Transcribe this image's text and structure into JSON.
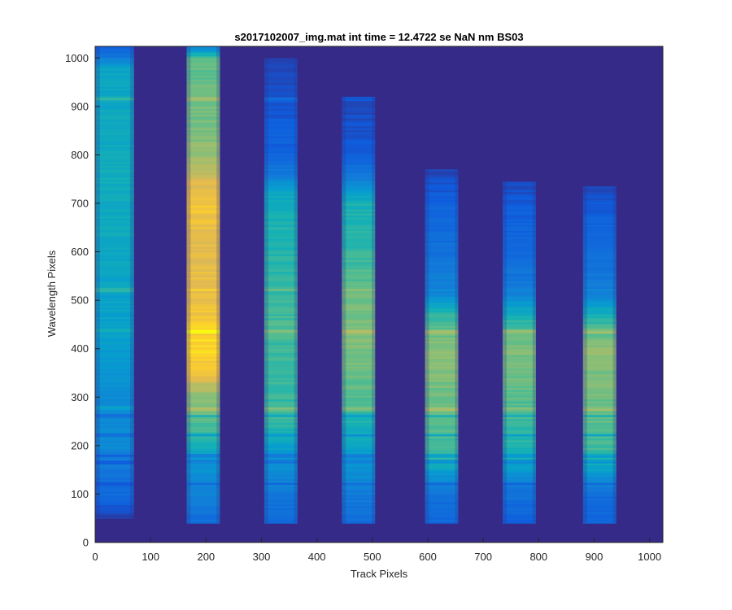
{
  "chart_data": {
    "type": "heatmap",
    "title": "s2017102007_img.mat int time = 12.4722 se  NaN nm BS03",
    "xlabel": "Track Pixels",
    "ylabel": "Wavelength Pixels",
    "xlim": [
      0,
      1024
    ],
    "ylim": [
      0,
      1024
    ],
    "xticks": [
      "0",
      "100",
      "200",
      "300",
      "400",
      "500",
      "600",
      "700",
      "800",
      "900",
      "1000"
    ],
    "yticks": [
      "0",
      "100",
      "200",
      "300",
      "400",
      "500",
      "600",
      "700",
      "800",
      "900",
      "1000"
    ],
    "colormap": "parula",
    "background_color": "#352A87",
    "tracks": [
      {
        "x_range": [
          0,
          70
        ],
        "y_range": [
          50,
          1024
        ],
        "levels": [
          [
            50,
            0.05
          ],
          [
            100,
            0.22
          ],
          [
            180,
            0.3
          ],
          [
            200,
            0.36
          ],
          [
            300,
            0.38
          ],
          [
            400,
            0.45
          ],
          [
            500,
            0.48
          ],
          [
            600,
            0.5
          ],
          [
            700,
            0.52
          ],
          [
            800,
            0.52
          ],
          [
            900,
            0.5
          ],
          [
            980,
            0.48
          ],
          [
            1000,
            0.3
          ],
          [
            1024,
            0.15
          ]
        ]
      },
      {
        "x_range": [
          165,
          225
        ],
        "y_range": [
          40,
          1024
        ],
        "levels": [
          [
            40,
            0.22
          ],
          [
            100,
            0.32
          ],
          [
            180,
            0.45
          ],
          [
            200,
            0.55
          ],
          [
            300,
            0.72
          ],
          [
            350,
            0.88
          ],
          [
            400,
            0.95
          ],
          [
            450,
            0.92
          ],
          [
            500,
            0.88
          ],
          [
            600,
            0.86
          ],
          [
            700,
            0.9
          ],
          [
            740,
            0.85
          ],
          [
            800,
            0.72
          ],
          [
            900,
            0.68
          ],
          [
            1000,
            0.65
          ],
          [
            1024,
            0.35
          ]
        ]
      },
      {
        "x_range": [
          305,
          365
        ],
        "y_range": [
          40,
          1000
        ],
        "levels": [
          [
            40,
            0.22
          ],
          [
            100,
            0.28
          ],
          [
            180,
            0.42
          ],
          [
            250,
            0.6
          ],
          [
            350,
            0.6
          ],
          [
            450,
            0.62
          ],
          [
            550,
            0.58
          ],
          [
            650,
            0.56
          ],
          [
            720,
            0.5
          ],
          [
            760,
            0.3
          ],
          [
            800,
            0.18
          ],
          [
            900,
            0.14
          ],
          [
            1000,
            0.08
          ]
        ]
      },
      {
        "x_range": [
          445,
          505
        ],
        "y_range": [
          40,
          920
        ],
        "levels": [
          [
            40,
            0.22
          ],
          [
            100,
            0.3
          ],
          [
            180,
            0.45
          ],
          [
            300,
            0.65
          ],
          [
            420,
            0.7
          ],
          [
            500,
            0.68
          ],
          [
            600,
            0.6
          ],
          [
            700,
            0.55
          ],
          [
            740,
            0.35
          ],
          [
            800,
            0.15
          ],
          [
            920,
            0.08
          ]
        ]
      },
      {
        "x_range": [
          595,
          655
        ],
        "y_range": [
          40,
          770
        ],
        "levels": [
          [
            40,
            0.2
          ],
          [
            100,
            0.25
          ],
          [
            180,
            0.6
          ],
          [
            300,
            0.68
          ],
          [
            400,
            0.72
          ],
          [
            450,
            0.65
          ],
          [
            480,
            0.55
          ],
          [
            520,
            0.32
          ],
          [
            600,
            0.25
          ],
          [
            700,
            0.18
          ],
          [
            770,
            0.08
          ]
        ]
      },
      {
        "x_range": [
          735,
          795
        ],
        "y_range": [
          40,
          745
        ],
        "levels": [
          [
            40,
            0.18
          ],
          [
            100,
            0.24
          ],
          [
            180,
            0.55
          ],
          [
            300,
            0.65
          ],
          [
            400,
            0.7
          ],
          [
            450,
            0.62
          ],
          [
            480,
            0.5
          ],
          [
            520,
            0.3
          ],
          [
            600,
            0.22
          ],
          [
            700,
            0.15
          ],
          [
            745,
            0.08
          ]
        ]
      },
      {
        "x_range": [
          880,
          940
        ],
        "y_range": [
          40,
          735
        ],
        "levels": [
          [
            40,
            0.18
          ],
          [
            100,
            0.24
          ],
          [
            180,
            0.6
          ],
          [
            300,
            0.68
          ],
          [
            400,
            0.72
          ],
          [
            450,
            0.62
          ],
          [
            480,
            0.5
          ],
          [
            520,
            0.3
          ],
          [
            600,
            0.22
          ],
          [
            700,
            0.15
          ],
          [
            735,
            0.08
          ]
        ]
      }
    ],
    "bright_rows": [
      275,
      435,
      520,
      915
    ],
    "dark_rows": [
      120,
      165,
      178,
      220,
      260
    ]
  }
}
